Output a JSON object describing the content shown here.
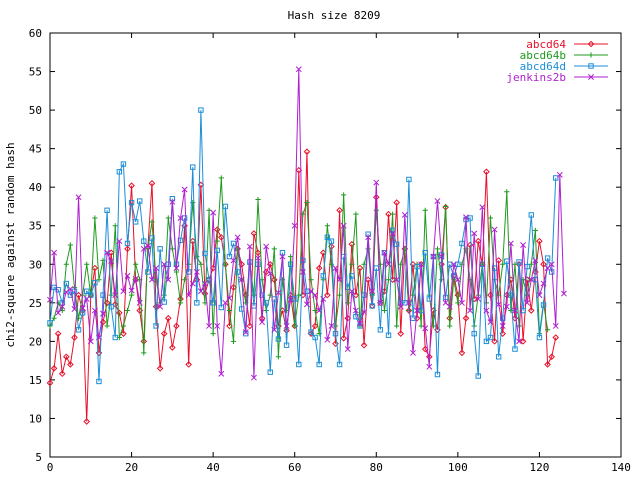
{
  "chart_data": {
    "type": "line",
    "title": "Hash size 8209",
    "xlabel": "",
    "ylabel": "chi2-square against random hash",
    "xlim": [
      0,
      140
    ],
    "ylim": [
      5,
      60
    ],
    "x_ticks": [
      0,
      20,
      40,
      60,
      80,
      100,
      120,
      140
    ],
    "y_ticks": [
      5,
      10,
      15,
      20,
      25,
      30,
      35,
      40,
      45,
      50,
      55,
      60
    ],
    "grid": false,
    "legend_position": "top-right",
    "series": [
      {
        "name": "abcd64",
        "color": "#e8102a",
        "marker": "diamond",
        "values": [
          14.6,
          16.5,
          21,
          15.8,
          18,
          17,
          20.5,
          26,
          24,
          9.6,
          26,
          29.5,
          18.5,
          22.5,
          25,
          31.5,
          24.8,
          23.7,
          21,
          32,
          40.2,
          28,
          24,
          20,
          32.2,
          40.5,
          24.5,
          16.5,
          21,
          23,
          19.2,
          22,
          25.5,
          35,
          17,
          33,
          28,
          40.3,
          26.2,
          28,
          29.5,
          34.5,
          33.5,
          30,
          22,
          27,
          32,
          30,
          26,
          22,
          34,
          31.5,
          23,
          29,
          30,
          28,
          22,
          24,
          21.4,
          26,
          22,
          42.2,
          26,
          44.6,
          21,
          22,
          29.5,
          31.5,
          26,
          32.3,
          19.7,
          37,
          20.4,
          23,
          32.6,
          26,
          29.5,
          19.5,
          28,
          24.6,
          38.7,
          25,
          26.5,
          36.5,
          28,
          38,
          21,
          32,
          24,
          30,
          23,
          30,
          19,
          18,
          24,
          21.5,
          30,
          37.4,
          23,
          28.5,
          26,
          18.5,
          23,
          32.5,
          25.5,
          33,
          30,
          42,
          26,
          20,
          30.5,
          21,
          26,
          28,
          23,
          30,
          20,
          28,
          24,
          29,
          33,
          30,
          17,
          18,
          20.5
        ]
      },
      {
        "name": "abcd64b",
        "color": "#1e9b1e",
        "marker": "plus",
        "values": [
          22,
          23,
          25,
          24,
          30,
          32.5,
          27,
          23,
          26,
          30,
          26,
          36,
          28,
          30.5,
          22,
          26,
          35,
          20.5,
          22,
          24,
          26,
          30,
          28,
          18.5,
          32,
          35.5,
          28,
          25,
          26,
          36,
          32,
          29,
          25,
          28,
          30,
          38,
          31,
          30,
          25,
          37,
          21,
          33,
          41.2,
          30,
          24,
          20,
          32,
          28,
          25,
          30,
          26,
          38.4,
          28,
          24,
          26,
          32,
          18,
          28,
          24,
          31,
          22,
          26,
          36.5,
          38,
          28,
          24,
          21,
          28,
          35,
          30,
          22,
          26,
          39,
          25,
          30,
          36.5,
          22,
          30,
          32,
          26,
          37,
          30,
          24,
          28,
          36.5,
          22,
          30,
          32,
          24,
          26,
          30,
          22,
          37,
          26,
          22,
          32,
          28,
          37.5,
          22,
          28,
          25,
          30,
          32,
          28,
          22,
          26,
          30,
          25,
          36,
          28,
          26,
          30,
          39.4,
          24,
          30,
          22,
          28,
          26,
          30,
          34.4,
          21,
          25,
          21.5
        ]
      },
      {
        "name": "abcd64d",
        "color": "#1c8ed8",
        "marker": "square",
        "values": [
          22.4,
          27,
          26.7,
          25,
          27.5,
          26,
          26.5,
          21.5,
          23.7,
          26.5,
          26,
          27.6,
          14.8,
          26,
          37,
          24.5,
          20.5,
          42,
          43,
          32.7,
          38,
          35.5,
          38.2,
          33,
          29,
          33.4,
          22,
          32,
          25.1,
          30,
          38.5,
          30,
          33.1,
          36,
          29,
          42.6,
          25,
          50,
          31.4,
          28,
          25,
          31.8,
          24.4,
          37.5,
          31,
          32.7,
          29,
          24.2,
          21,
          30.3,
          24.6,
          30,
          26,
          25,
          16,
          25.5,
          20.3,
          31.5,
          19.5,
          30,
          25.5,
          17,
          30.5,
          26.5,
          21.2,
          20.5,
          17,
          28.5,
          33.5,
          33,
          21,
          17,
          31,
          27,
          28.5,
          23.2,
          22,
          26,
          33.9,
          24.6,
          29.5,
          21.5,
          31.5,
          20.8,
          34.4,
          32.6,
          25,
          25,
          41,
          23,
          29.7,
          24,
          31.5,
          25.5,
          31,
          15.7,
          31.2,
          25.7,
          30,
          28.5,
          30,
          32.7,
          35.8,
          36,
          21,
          15.5,
          30,
          20,
          20.5,
          29.5,
          18,
          23,
          30.4,
          26,
          19,
          30.3,
          24,
          29.7,
          36.4,
          28,
          20.5,
          24.7,
          30.8,
          29,
          41.2
        ]
      },
      {
        "name": "jenkins2b",
        "color": "#b01fd0",
        "marker": "x",
        "values": [
          25.4,
          31.5,
          23.7,
          24.5,
          26.4,
          26.8,
          24.2,
          38.7,
          24.3,
          25.5,
          20,
          24,
          20.5,
          23.6,
          31.5,
          30.4,
          26,
          33,
          26.5,
          28.5,
          26.6,
          28.1,
          25,
          32,
          32.4,
          28,
          29.5,
          24.5,
          30,
          28,
          38.1,
          29.5,
          36,
          39.7,
          26,
          27.5,
          29,
          26.5,
          27.5,
          22,
          36.7,
          22,
          15.8,
          25,
          25.6,
          30.5,
          33.5,
          28,
          21.2,
          32.3,
          15.3,
          30.8,
          22.5,
          32.3,
          28.8,
          21.5,
          26.3,
          31,
          22,
          25.4,
          35,
          55.3,
          29,
          24.8,
          26.5,
          26,
          24,
          25.5,
          20.2,
          22,
          29.5,
          28,
          35,
          19,
          26.5,
          24,
          22.3,
          23.8,
          33.5,
          26.5,
          40.6,
          25,
          31.5,
          30,
          34,
          28,
          24.5,
          36.4,
          25,
          18.5,
          24,
          30,
          21.7,
          16.7,
          31,
          38.2,
          31,
          25,
          24.5,
          30,
          28,
          25,
          36.1,
          24,
          34,
          25.5,
          37.4,
          24,
          22.5,
          34.5,
          24.8,
          22,
          24.5,
          32.7,
          24,
          20,
          32.5,
          25,
          28,
          30.5,
          26,
          27.5,
          29.5,
          30,
          22,
          41.6,
          26.2
        ]
      }
    ]
  }
}
